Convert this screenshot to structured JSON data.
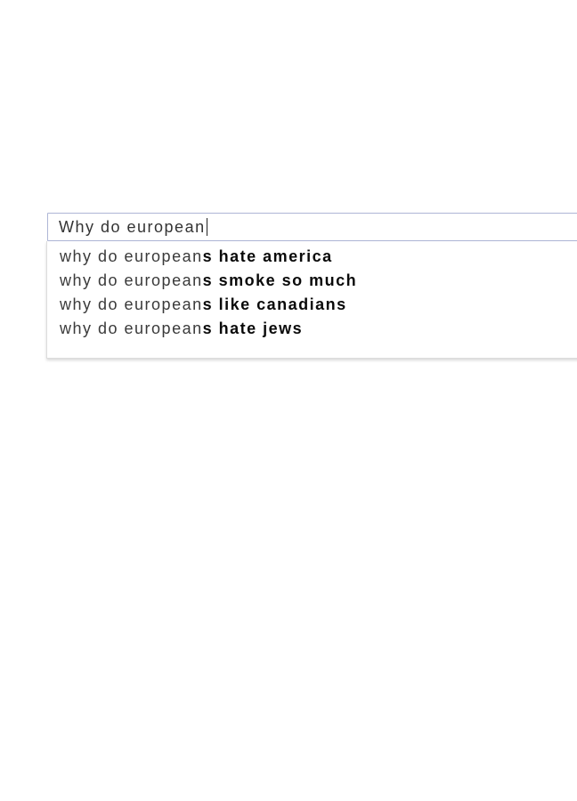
{
  "search": {
    "query": "Why do european",
    "suggestions": [
      {
        "prefix": "why do european",
        "completion": "s hate america"
      },
      {
        "prefix": "why do european",
        "completion": "s smoke so much"
      },
      {
        "prefix": "why do european",
        "completion": "s like canadians"
      },
      {
        "prefix": "why do european",
        "completion": "s hate jews"
      }
    ]
  },
  "colors": {
    "input_border": "#aeb6d6",
    "dropdown_border": "#dcdcdc",
    "input_text": "#333333",
    "suggestion_text": "#3a3a3a",
    "suggestion_bold_text": "#0a0a0a",
    "background": "#ffffff"
  }
}
